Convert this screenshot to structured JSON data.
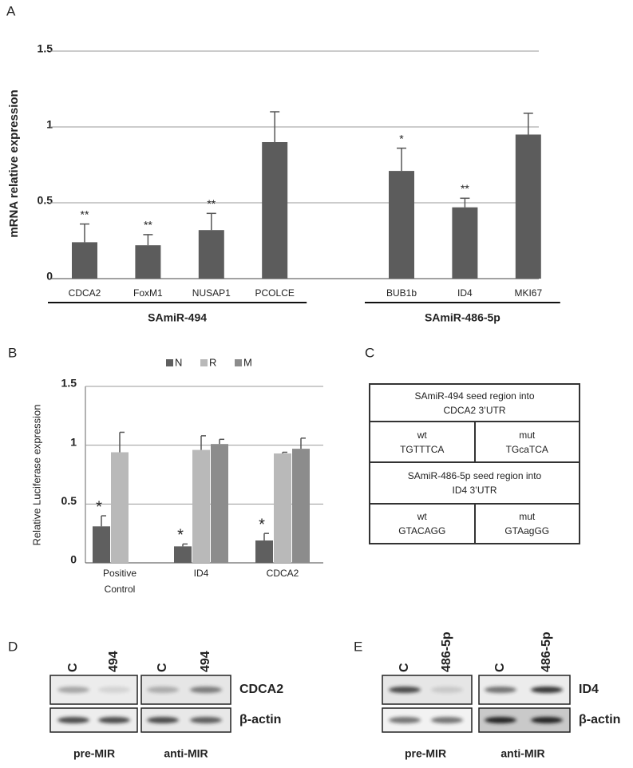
{
  "chart_data": [
    {
      "type": "bar",
      "panel": "A",
      "y_label": "mRNA relative expression",
      "ylim": [
        0,
        1.5
      ],
      "yticks": [
        0,
        0.5,
        1,
        1.5
      ],
      "grid": true,
      "color": "#5c5c5c",
      "groups": [
        {
          "name": "SAmiR-494",
          "categories": [
            "CDCA2",
            "FoxM1",
            "NUSAP1",
            "PCOLCE"
          ],
          "values": [
            0.24,
            0.22,
            0.32,
            0.9
          ],
          "errors": [
            0.12,
            0.07,
            0.11,
            0.2
          ],
          "annotations": [
            "**",
            "**",
            "**",
            null
          ]
        },
        {
          "name": "SAmiR-486-5p",
          "categories": [
            "BUB1b",
            "ID4",
            "MKI67"
          ],
          "values": [
            0.71,
            0.47,
            0.95
          ],
          "errors": [
            0.15,
            0.06,
            0.14
          ],
          "annotations": [
            "*",
            "**",
            null
          ]
        }
      ]
    },
    {
      "type": "bar",
      "panel": "B",
      "y_label": "Relative Luciferase expression",
      "ylim": [
        0,
        1.5
      ],
      "yticks": [
        0,
        0.5,
        1,
        1.5
      ],
      "grid": true,
      "categories": [
        "Positive Control",
        "ID4",
        "CDCA2"
      ],
      "series": [
        {
          "name": "N",
          "color": "#5f5f5f",
          "values": [
            0.31,
            0.14,
            0.19
          ],
          "errors": [
            0.09,
            0.02,
            0.06
          ],
          "annotations": [
            "*",
            "*",
            "*"
          ]
        },
        {
          "name": "R",
          "color": "#b9b9b9",
          "values": [
            0.94,
            0.96,
            0.93
          ],
          "errors": [
            0.17,
            0.12,
            0.01
          ]
        },
        {
          "name": "M",
          "color": "#8c8c8c",
          "values": [
            null,
            1.01,
            0.97
          ],
          "errors": [
            null,
            0.04,
            0.09
          ]
        }
      ]
    }
  ],
  "table": {
    "panel": "C",
    "rows": [
      {
        "header": [
          "SAmiR-494 seed region into",
          "CDCA2 3’UTR"
        ]
      },
      {
        "cells": [
          [
            "wt",
            "TGTTTCA"
          ],
          [
            "mut",
            "TGcaTCA"
          ]
        ]
      },
      {
        "header": [
          "SAmiR-486-5p seed region into",
          "ID4 3’UTR"
        ]
      },
      {
        "cells": [
          [
            "wt",
            "GTACAGG"
          ],
          [
            "mut",
            "GTAagGG"
          ]
        ]
      }
    ]
  },
  "blots": [
    {
      "panel": "D",
      "lanes": [
        "C",
        "494",
        "C",
        "494"
      ],
      "proteins": [
        "CDCA2",
        "β-actin"
      ],
      "conditions": [
        "pre-MIR",
        "anti-MIR"
      ]
    },
    {
      "panel": "E",
      "lanes": [
        "C",
        "486-5p",
        "C",
        "486-5p"
      ],
      "proteins": [
        "ID4",
        "β-actin"
      ],
      "conditions": [
        "pre-MIR",
        "anti-MIR"
      ]
    }
  ]
}
